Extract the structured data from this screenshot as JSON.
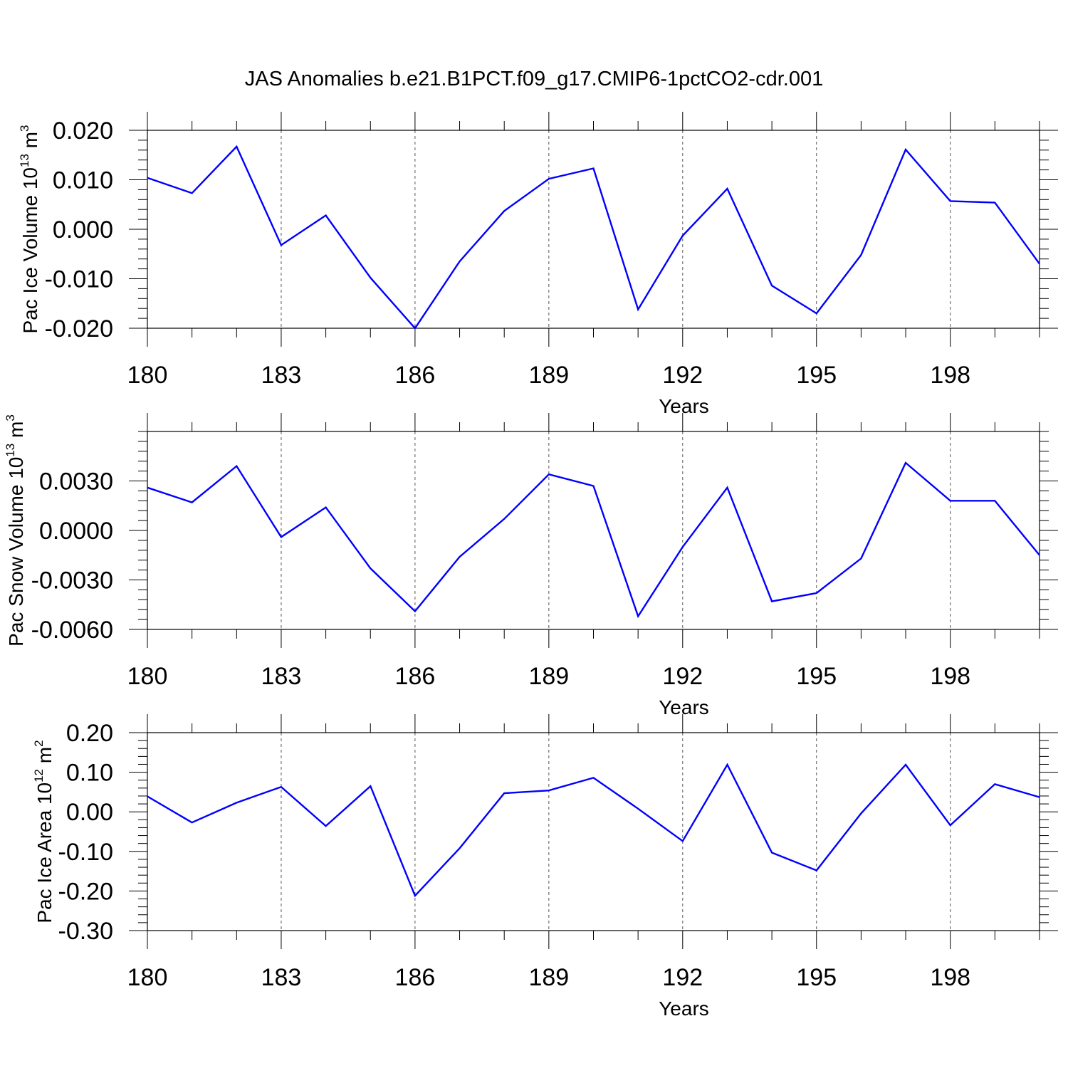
{
  "title": "JAS Anomalies b.e21.B1PCT.f09_g17.CMIP6-1pctCO2-cdr.001",
  "chart_data": [
    {
      "type": "line",
      "ylabel": {
        "text": "Pac Ice Volume 10",
        "exp": "13",
        "unit": " m",
        "unit_exp": "3"
      },
      "xlabel": "Years",
      "xlim": [
        180,
        200
      ],
      "ylim": [
        -0.02,
        0.02
      ],
      "xticks": [
        180,
        183,
        186,
        189,
        192,
        195,
        198
      ],
      "yticks": [
        -0.02,
        -0.01,
        0.0,
        0.01,
        0.02
      ],
      "ytick_labels": [
        "-0.020",
        "-0.010",
        "0.000",
        "0.010",
        "0.020"
      ],
      "grid": "x-dashed-at-major",
      "color": "#0000ff",
      "x": [
        180,
        181,
        182,
        183,
        184,
        185,
        186,
        187,
        188,
        189,
        190,
        191,
        192,
        193,
        194,
        195,
        196,
        197,
        198,
        199,
        200
      ],
      "y": [
        0.0104,
        0.0073,
        0.0167,
        -0.0032,
        0.0028,
        -0.0098,
        -0.02,
        -0.0065,
        0.0037,
        0.0102,
        0.0123,
        -0.0162,
        -0.0013,
        0.0082,
        -0.0114,
        -0.017,
        -0.0052,
        0.0161,
        0.0057,
        0.0054,
        -0.007
      ]
    },
    {
      "type": "line",
      "ylabel": {
        "text": "Pac Snow Volume 10",
        "exp": "13",
        "unit": " m",
        "unit_exp": "3"
      },
      "xlabel": "Years",
      "xlim": [
        180,
        200
      ],
      "ylim": [
        -0.006,
        0.006
      ],
      "xticks": [
        180,
        183,
        186,
        189,
        192,
        195,
        198
      ],
      "yticks": [
        -0.006,
        -0.003,
        0.0,
        0.003
      ],
      "ytick_labels": [
        "-0.0060",
        "-0.0030",
        "0.0000",
        "0.0030"
      ],
      "grid": "x-dashed-at-major",
      "color": "#0000ff",
      "x": [
        180,
        181,
        182,
        183,
        184,
        185,
        186,
        187,
        188,
        189,
        190,
        191,
        192,
        193,
        194,
        195,
        196,
        197,
        198,
        199,
        200
      ],
      "y": [
        0.0026,
        0.0017,
        0.0039,
        -0.0004,
        0.0014,
        -0.0023,
        -0.0049,
        -0.0016,
        0.0007,
        0.0034,
        0.0027,
        -0.0052,
        -0.001,
        0.0026,
        -0.0043,
        -0.0038,
        -0.0017,
        0.0041,
        0.0018,
        0.0018,
        -0.0015
      ]
    },
    {
      "type": "line",
      "ylabel": {
        "text": "Pac Ice Area 10",
        "exp": "12",
        "unit": " m",
        "unit_exp": "2"
      },
      "xlabel": "Years",
      "xlim": [
        180,
        200
      ],
      "ylim": [
        -0.3,
        0.2
      ],
      "xticks": [
        180,
        183,
        186,
        189,
        192,
        195,
        198
      ],
      "yticks": [
        -0.3,
        -0.2,
        -0.1,
        0.0,
        0.1,
        0.2
      ],
      "ytick_labels": [
        "-0.30",
        "-0.20",
        "-0.10",
        "0.00",
        "0.10",
        "0.20"
      ],
      "grid": "x-dashed-at-major",
      "color": "#0000ff",
      "x": [
        180,
        181,
        182,
        183,
        184,
        185,
        186,
        187,
        188,
        189,
        190,
        191,
        192,
        193,
        194,
        195,
        196,
        197,
        198,
        199,
        200
      ],
      "y": [
        0.039,
        -0.027,
        0.023,
        0.063,
        -0.036,
        0.065,
        -0.212,
        -0.092,
        0.047,
        0.054,
        0.086,
        0.008,
        -0.074,
        0.119,
        -0.103,
        -0.148,
        -0.004,
        0.119,
        -0.034,
        0.07,
        0.037
      ]
    }
  ]
}
